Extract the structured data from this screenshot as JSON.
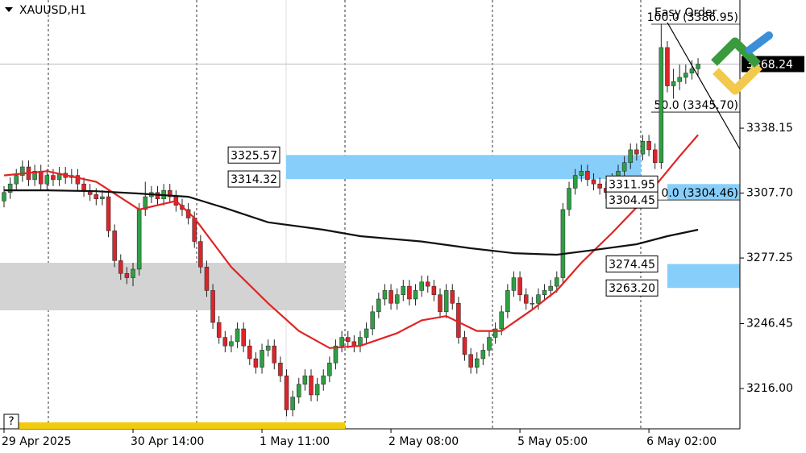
{
  "chart_data": {
    "type": "candlestick",
    "title": "XAUUSD,H1",
    "categories": [
      "29 Apr 2025",
      null,
      null,
      null,
      null,
      null,
      null,
      null,
      null,
      null,
      null,
      null,
      null,
      null,
      null,
      null,
      null,
      null,
      null,
      null,
      null,
      "30 Apr 14:00",
      null,
      null,
      null,
      null,
      null,
      null,
      null,
      null,
      null,
      null,
      null,
      null,
      null,
      null,
      null,
      null,
      null,
      null,
      null,
      null,
      "1 May 11:00",
      null,
      null,
      null,
      null,
      null,
      null,
      null,
      null,
      null,
      null,
      null,
      null,
      null,
      null,
      null,
      null,
      null,
      null,
      null,
      null,
      "2 May 08:00",
      null,
      null,
      null,
      null,
      null,
      null,
      null,
      null,
      null,
      null,
      null,
      null,
      null,
      null,
      null,
      null,
      null,
      null,
      null,
      null,
      "5 May 05:00",
      null,
      null,
      null,
      null,
      null,
      null,
      null,
      null,
      null,
      null,
      null,
      null,
      null,
      null,
      null,
      null,
      null,
      null,
      null,
      null,
      "6 May 02:00",
      null,
      null,
      null,
      null,
      null,
      null,
      null,
      null
    ],
    "open": [
      3304,
      3308,
      3312,
      3316,
      3320,
      3314,
      3318,
      3312,
      3316,
      3314,
      3317,
      3315,
      3316,
      3312,
      3309,
      3307,
      3305,
      3306,
      3290,
      3276,
      3270,
      3268,
      3272,
      3300,
      3306,
      3308,
      3305,
      3309,
      3306,
      3302,
      3300,
      3296,
      3285,
      3273,
      3262,
      3247,
      3240,
      3236,
      3238,
      3244,
      3236,
      3230,
      3226,
      3234,
      3236,
      3228,
      3222,
      3206,
      3212,
      3218,
      3222,
      3213,
      3218,
      3222,
      3228,
      3236,
      3240,
      3238,
      3236,
      3240,
      3244,
      3252,
      3258,
      3262,
      3256,
      3260,
      3264,
      3258,
      3262,
      3266,
      3264,
      3260,
      3252,
      3262,
      3256,
      3240,
      3232,
      3226,
      3230,
      3234,
      3240,
      3244,
      3252,
      3262,
      3268,
      3260,
      3256,
      3256,
      3260,
      3262,
      3264,
      3268,
      3300,
      3310,
      3316,
      3318,
      3314,
      3312,
      3310,
      3308,
      3314,
      3318,
      3322,
      3328,
      3326,
      3332,
      3328,
      3322,
      3376,
      3358,
      3360,
      3362,
      3364,
      3366
    ],
    "high": [
      3311,
      3315,
      3319,
      3323,
      3323,
      3321,
      3321,
      3319,
      3319,
      3320,
      3320,
      3319,
      3319,
      3315,
      3312,
      3310,
      3309,
      3309,
      3293,
      3279,
      3273,
      3275,
      3303,
      3313,
      3311,
      3311,
      3312,
      3312,
      3309,
      3305,
      3303,
      3299,
      3288,
      3276,
      3265,
      3250,
      3243,
      3241,
      3247,
      3247,
      3239,
      3233,
      3237,
      3239,
      3239,
      3231,
      3225,
      3215,
      3221,
      3225,
      3225,
      3221,
      3225,
      3231,
      3239,
      3243,
      3243,
      3241,
      3243,
      3247,
      3255,
      3261,
      3265,
      3265,
      3263,
      3267,
      3267,
      3265,
      3269,
      3269,
      3267,
      3263,
      3265,
      3265,
      3259,
      3243,
      3235,
      3233,
      3237,
      3243,
      3247,
      3255,
      3265,
      3271,
      3271,
      3263,
      3259,
      3263,
      3265,
      3267,
      3271,
      3303,
      3313,
      3319,
      3321,
      3321,
      3317,
      3315,
      3313,
      3317,
      3321,
      3325,
      3331,
      3331,
      3335,
      3335,
      3331,
      3386.95,
      3379,
      3366,
      3368,
      3368,
      3370,
      3371
    ],
    "low": [
      3301,
      3305,
      3309,
      3313,
      3311,
      3311,
      3309,
      3309,
      3311,
      3311,
      3312,
      3312,
      3309,
      3306,
      3304,
      3302,
      3302,
      3287,
      3273,
      3267,
      3265,
      3264,
      3269,
      3297,
      3303,
      3302,
      3302,
      3303,
      3299,
      3297,
      3293,
      3282,
      3270,
      3259,
      3244,
      3237,
      3233,
      3233,
      3235,
      3233,
      3227,
      3223,
      3223,
      3231,
      3225,
      3219,
      3203,
      3203,
      3209,
      3215,
      3210,
      3210,
      3215,
      3219,
      3225,
      3233,
      3235,
      3233,
      3233,
      3237,
      3241,
      3249,
      3255,
      3253,
      3253,
      3257,
      3255,
      3255,
      3259,
      3261,
      3257,
      3249,
      3249,
      3253,
      3237,
      3229,
      3223,
      3223,
      3227,
      3231,
      3237,
      3241,
      3249,
      3259,
      3257,
      3253,
      3253,
      3253,
      3257,
      3259,
      3261,
      3265,
      3297,
      3307,
      3313,
      3311,
      3309,
      3307,
      3305,
      3305,
      3311,
      3315,
      3319,
      3323,
      3323,
      3325,
      3319,
      3319,
      3355,
      3352,
      3356,
      3359,
      3361,
      3363
    ],
    "close": [
      3308,
      3312,
      3316,
      3320,
      3314,
      3318,
      3312,
      3316,
      3314,
      3317,
      3315,
      3316,
      3312,
      3309,
      3307,
      3305,
      3306,
      3290,
      3276,
      3270,
      3268,
      3272,
      3300,
      3306,
      3308,
      3305,
      3309,
      3306,
      3302,
      3300,
      3296,
      3285,
      3273,
      3262,
      3247,
      3240,
      3236,
      3238,
      3244,
      3236,
      3230,
      3226,
      3234,
      3236,
      3228,
      3222,
      3206,
      3212,
      3218,
      3222,
      3213,
      3218,
      3222,
      3228,
      3236,
      3240,
      3238,
      3236,
      3240,
      3244,
      3252,
      3258,
      3262,
      3256,
      3260,
      3264,
      3258,
      3262,
      3266,
      3264,
      3260,
      3252,
      3262,
      3256,
      3240,
      3232,
      3226,
      3230,
      3234,
      3240,
      3244,
      3252,
      3262,
      3268,
      3260,
      3256,
      3256,
      3260,
      3262,
      3264,
      3268,
      3300,
      3310,
      3316,
      3318,
      3314,
      3312,
      3310,
      3308,
      3314,
      3318,
      3322,
      3328,
      3326,
      3332,
      3328,
      3322,
      3376,
      3358,
      3360,
      3362,
      3364,
      3366,
      3368.24
    ],
    "up_color": "#2f9e44",
    "down_color": "#d9262b",
    "ylim": [
      3197.1,
      3398.3
    ],
    "yticks": [
      3338.15,
      {
        "value": 3307.7,
        "label": "3307.70"
      },
      3277.25,
      3246.45,
      {
        "value": 3216,
        "label": "3216.00"
      }
    ],
    "moving_averages": [
      {
        "color": "#e02424",
        "x": [
          0,
          7,
          15,
          22,
          28,
          31,
          37,
          43,
          48,
          53,
          58,
          64,
          68,
          72,
          77,
          81,
          86,
          90,
          94,
          99,
          104,
          110,
          113
        ],
        "values": [
          3316,
          3318,
          3313,
          3300,
          3304,
          3296,
          3273,
          3256,
          3243,
          3235,
          3236,
          3242,
          3248,
          3250,
          3243,
          3243,
          3253,
          3262,
          3275,
          3289,
          3304,
          3325,
          3335
        ]
      },
      {
        "color": "#111111",
        "x": [
          0,
          7,
          15,
          22,
          30,
          36,
          43,
          52,
          58,
          68,
          76,
          83,
          90,
          96,
          103,
          108,
          113
        ],
        "values": [
          3309,
          3309,
          3308.6,
          3307.5,
          3306,
          3300.7,
          3294,
          3290.5,
          3287.5,
          3285,
          3281.8,
          3279.5,
          3278.8,
          3281,
          3283.7,
          3287.5,
          3290.5
        ]
      }
    ],
    "zones": [
      {
        "top": 3325.57,
        "bottom": 3314.32,
        "color": "#87cefa"
      },
      {
        "top": 3275.0,
        "bottom": 3252.7,
        "color": "#d3d3d3"
      },
      {
        "top": 3311.95,
        "bottom": 3304.45,
        "color": "#87cefa"
      },
      {
        "top": 3274.45,
        "bottom": {
          "value": 3263.2,
          "label": "3263.20"
        },
        "color": "#87cefa"
      }
    ],
    "fib_levels": [
      {
        "value": 3386.95,
        "label": "100.0 (3386.95)"
      },
      {
        "value": 3345.7,
        "label": "50.0 (3345.70)"
      },
      {
        "value": 3304.46,
        "label": "0.0 (3304.46)"
      }
    ],
    "current_price": 3368.24,
    "annotation": "Easy Order",
    "help_label": "?"
  }
}
